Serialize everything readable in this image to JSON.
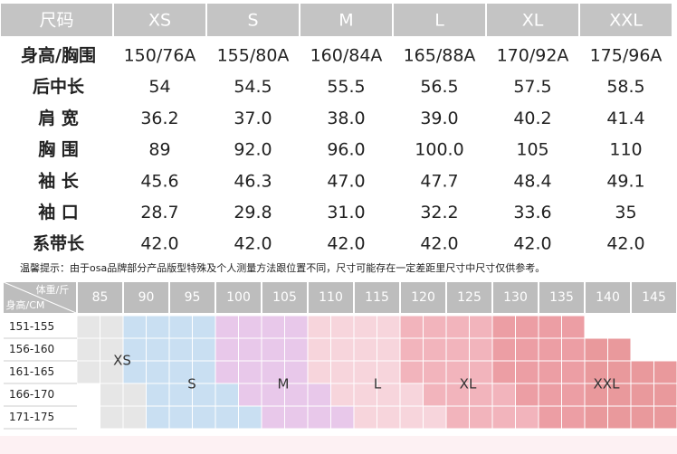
{
  "table": {
    "header": [
      "尺码",
      "XS",
      "S",
      "M",
      "L",
      "XL",
      "XXL"
    ],
    "rows": [
      [
        "身高/胸围",
        "150/76A",
        "155/80A",
        "160/84A",
        "165/88A",
        "170/92A",
        "175/96A"
      ],
      [
        "后中长",
        "54",
        "54.5",
        "55.5",
        "56.5",
        "57.5",
        "58.5"
      ],
      [
        "肩 宽",
        "36.2",
        "37.0",
        "38.0",
        "39.0",
        "40.2",
        "41.4"
      ],
      [
        "胸 围",
        "89",
        "92.0",
        "96.0",
        "100.0",
        "105",
        "110"
      ],
      [
        "袖 长",
        "45.6",
        "46.3",
        "47.0",
        "47.7",
        "48.4",
        "49.1"
      ],
      [
        "袖 口",
        "28.7",
        "29.8",
        "31.0",
        "32.2",
        "33.6",
        "35"
      ],
      [
        "系带长",
        "42.0",
        "42.0",
        "42.0",
        "42.0",
        "42.0",
        "42.0"
      ]
    ]
  },
  "note": "温馨提示：由于osa品牌部分产品版型特殊及个人测量方法跟位置不同，尺寸可能存在一定差距里尺寸中尺寸仅供参考。",
  "chart": {
    "corner_top": "体重/斤",
    "corner_bottom": "身高/CM",
    "weights": [
      "85",
      "90",
      "95",
      "100",
      "105",
      "110",
      "115",
      "120",
      "125",
      "130",
      "135",
      "140",
      "145"
    ],
    "heights": [
      "151-155",
      "156-160",
      "161-165",
      "166-170",
      "171-175"
    ],
    "sizes": [
      "XS",
      "S",
      "M",
      "L",
      "XL",
      "XXL"
    ]
  }
}
